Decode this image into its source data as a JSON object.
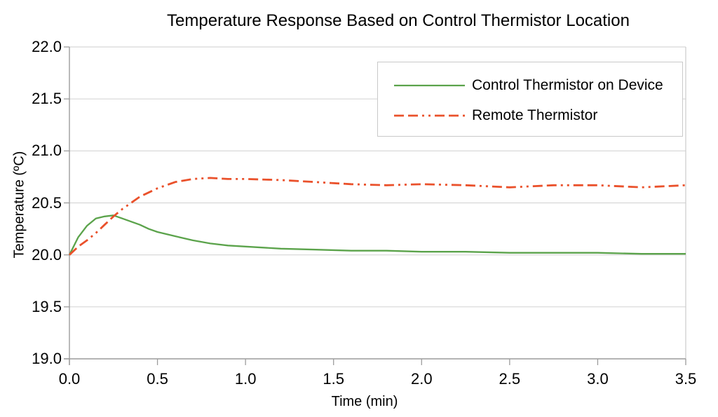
{
  "chart_data": {
    "type": "line",
    "title": "Temperature Response Based on Control Thermistor Location",
    "xlabel": "Time (min)",
    "ylabel": "Temperature (ºC)",
    "xlim": [
      0.0,
      3.5
    ],
    "ylim": [
      19.0,
      22.0
    ],
    "xticks": [
      0.0,
      0.5,
      1.0,
      1.5,
      2.0,
      2.5,
      3.0,
      3.5
    ],
    "yticks": [
      19.0,
      19.5,
      20.0,
      20.5,
      21.0,
      21.5,
      22.0
    ],
    "grid": "horizontal",
    "legend_position": "top-right-inside",
    "colors": {
      "grid": "#d6d6d6",
      "axis": "#9c9c9c",
      "plot_border": "#cccccc",
      "legend_border": "#c9c9c9",
      "text": "#000000",
      "background": "#ffffff"
    },
    "series": [
      {
        "name": "Control Thermistor on Device",
        "color": "#5ba34b",
        "style": "solid",
        "width": 2.3,
        "dash": "",
        "points": [
          [
            0.0,
            20.0
          ],
          [
            0.05,
            20.17
          ],
          [
            0.1,
            20.28
          ],
          [
            0.15,
            20.35
          ],
          [
            0.2,
            20.37
          ],
          [
            0.25,
            20.38
          ],
          [
            0.3,
            20.35
          ],
          [
            0.35,
            20.32
          ],
          [
            0.4,
            20.29
          ],
          [
            0.45,
            20.25
          ],
          [
            0.5,
            20.22
          ],
          [
            0.6,
            20.18
          ],
          [
            0.7,
            20.14
          ],
          [
            0.8,
            20.11
          ],
          [
            0.9,
            20.09
          ],
          [
            1.0,
            20.08
          ],
          [
            1.2,
            20.06
          ],
          [
            1.4,
            20.05
          ],
          [
            1.6,
            20.04
          ],
          [
            1.8,
            20.04
          ],
          [
            2.0,
            20.03
          ],
          [
            2.25,
            20.03
          ],
          [
            2.5,
            20.02
          ],
          [
            2.75,
            20.02
          ],
          [
            3.0,
            20.02
          ],
          [
            3.25,
            20.01
          ],
          [
            3.5,
            20.01
          ]
        ]
      },
      {
        "name": "Remote Thermistor",
        "color": "#ea512b",
        "style": "dash-dash-dot-dot",
        "width": 2.8,
        "dash": "14 6 14 6 3 6 3 6",
        "points": [
          [
            0.0,
            20.0
          ],
          [
            0.05,
            20.08
          ],
          [
            0.1,
            20.14
          ],
          [
            0.15,
            20.21
          ],
          [
            0.2,
            20.29
          ],
          [
            0.25,
            20.37
          ],
          [
            0.3,
            20.44
          ],
          [
            0.35,
            20.5
          ],
          [
            0.4,
            20.56
          ],
          [
            0.45,
            20.6
          ],
          [
            0.5,
            20.64
          ],
          [
            0.6,
            20.7
          ],
          [
            0.7,
            20.73
          ],
          [
            0.8,
            20.74
          ],
          [
            0.9,
            20.73
          ],
          [
            1.0,
            20.73
          ],
          [
            1.2,
            20.72
          ],
          [
            1.4,
            20.7
          ],
          [
            1.6,
            20.68
          ],
          [
            1.8,
            20.67
          ],
          [
            2.0,
            20.68
          ],
          [
            2.25,
            20.67
          ],
          [
            2.5,
            20.65
          ],
          [
            2.75,
            20.67
          ],
          [
            3.0,
            20.67
          ],
          [
            3.25,
            20.65
          ],
          [
            3.5,
            20.67
          ]
        ]
      }
    ]
  }
}
